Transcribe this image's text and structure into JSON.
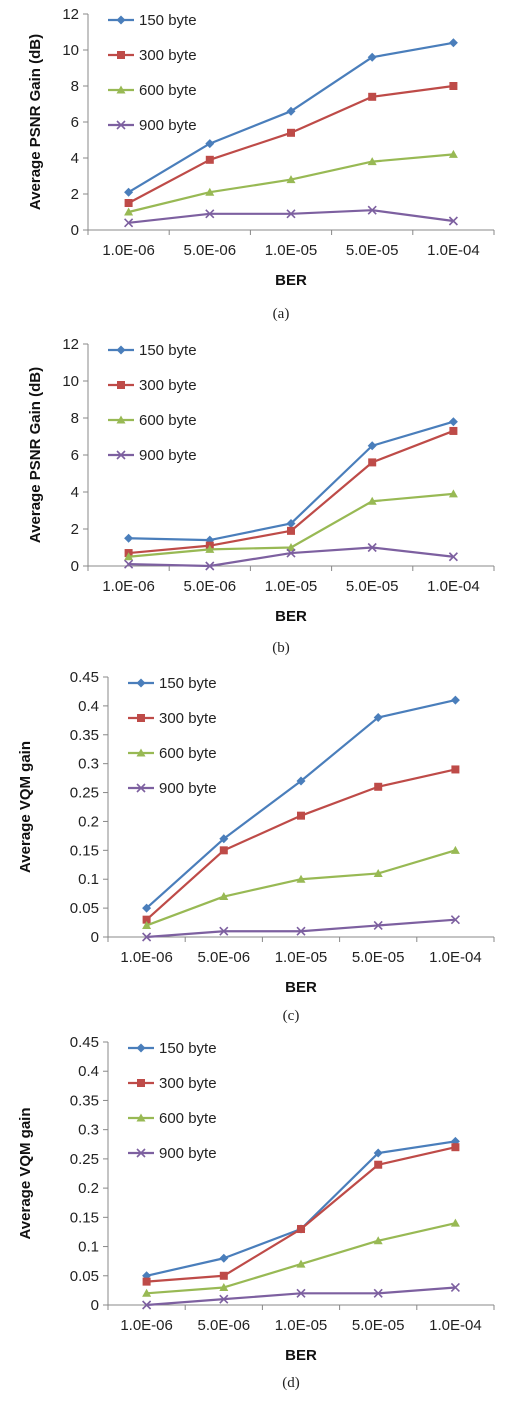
{
  "colors": {
    "s150": "#4A7EBB",
    "s300": "#BE4B48",
    "s600": "#98B954",
    "s900": "#7D60A0",
    "axis": "#888888"
  },
  "chart_data": [
    {
      "type": "line",
      "ylabel": "Average PSNR Gain (dB)",
      "xlabel": "BER",
      "caption": "(a)",
      "categories": [
        "1.0E-06",
        "5.0E-06",
        "1.0E-05",
        "5.0E-05",
        "1.0E-04"
      ],
      "ylim": [
        0,
        12
      ],
      "yticks": [
        "0",
        "2",
        "4",
        "6",
        "8",
        "10",
        "12"
      ],
      "grid": false,
      "legend_position": "top-left",
      "series": [
        {
          "name": "150 byte",
          "marker": "diamond",
          "values": [
            2.1,
            4.8,
            6.6,
            9.6,
            10.4
          ]
        },
        {
          "name": "300 byte",
          "marker": "square",
          "values": [
            1.5,
            3.9,
            5.4,
            7.4,
            8.0
          ]
        },
        {
          "name": "600 byte",
          "marker": "triangle",
          "values": [
            1.0,
            2.1,
            2.8,
            3.8,
            4.2
          ]
        },
        {
          "name": "900 byte",
          "marker": "x",
          "values": [
            0.4,
            0.9,
            0.9,
            1.1,
            0.5
          ]
        }
      ]
    },
    {
      "type": "line",
      "ylabel": "Average PSNR Gain (dB)",
      "xlabel": "BER",
      "caption": "(b)",
      "categories": [
        "1.0E-06",
        "5.0E-06",
        "1.0E-05",
        "5.0E-05",
        "1.0E-04"
      ],
      "ylim": [
        0,
        12
      ],
      "yticks": [
        "0",
        "2",
        "4",
        "6",
        "8",
        "10",
        "12"
      ],
      "grid": false,
      "legend_position": "top-left",
      "series": [
        {
          "name": "150 byte",
          "marker": "diamond",
          "values": [
            1.5,
            1.4,
            2.3,
            6.5,
            7.8
          ]
        },
        {
          "name": "300 byte",
          "marker": "square",
          "values": [
            0.7,
            1.1,
            1.9,
            5.6,
            7.3
          ]
        },
        {
          "name": "600 byte",
          "marker": "triangle",
          "values": [
            0.5,
            0.9,
            1.0,
            3.5,
            3.9
          ]
        },
        {
          "name": "900 byte",
          "marker": "x",
          "values": [
            0.1,
            0.0,
            0.7,
            1.0,
            0.5
          ]
        }
      ]
    },
    {
      "type": "line",
      "ylabel": "Average VQM gain",
      "xlabel": "BER",
      "caption": "(c)",
      "categories": [
        "1.0E-06",
        "5.0E-06",
        "1.0E-05",
        "5.0E-05",
        "1.0E-04"
      ],
      "ylim": [
        0,
        0.45
      ],
      "yticks": [
        "0",
        "0.05",
        "0.1",
        "0.15",
        "0.2",
        "0.25",
        "0.3",
        "0.35",
        "0.4",
        "0.45"
      ],
      "grid": false,
      "legend_position": "top-left",
      "series": [
        {
          "name": "150 byte",
          "marker": "diamond",
          "values": [
            0.05,
            0.17,
            0.27,
            0.38,
            0.41
          ]
        },
        {
          "name": "300 byte",
          "marker": "square",
          "values": [
            0.03,
            0.15,
            0.21,
            0.26,
            0.29
          ]
        },
        {
          "name": "600 byte",
          "marker": "triangle",
          "values": [
            0.02,
            0.07,
            0.1,
            0.11,
            0.15
          ]
        },
        {
          "name": "900 byte",
          "marker": "x",
          "values": [
            0.0,
            0.01,
            0.01,
            0.02,
            0.03
          ]
        }
      ]
    },
    {
      "type": "line",
      "ylabel": "Average VQM gain",
      "xlabel": "BER",
      "caption": "(d)",
      "categories": [
        "1.0E-06",
        "5.0E-06",
        "1.0E-05",
        "5.0E-05",
        "1.0E-04"
      ],
      "ylim": [
        0,
        0.45
      ],
      "yticks": [
        "0",
        "0.05",
        "0.1",
        "0.15",
        "0.2",
        "0.25",
        "0.3",
        "0.35",
        "0.4",
        "0.45"
      ],
      "grid": false,
      "legend_position": "top-left",
      "series": [
        {
          "name": "150 byte",
          "marker": "diamond",
          "values": [
            0.05,
            0.08,
            0.13,
            0.26,
            0.28
          ]
        },
        {
          "name": "300 byte",
          "marker": "square",
          "values": [
            0.04,
            0.05,
            0.13,
            0.24,
            0.27
          ]
        },
        {
          "name": "600 byte",
          "marker": "triangle",
          "values": [
            0.02,
            0.03,
            0.07,
            0.11,
            0.14
          ]
        },
        {
          "name": "900 byte",
          "marker": "x",
          "values": [
            0.0,
            0.01,
            0.02,
            0.02,
            0.03
          ]
        }
      ]
    }
  ]
}
